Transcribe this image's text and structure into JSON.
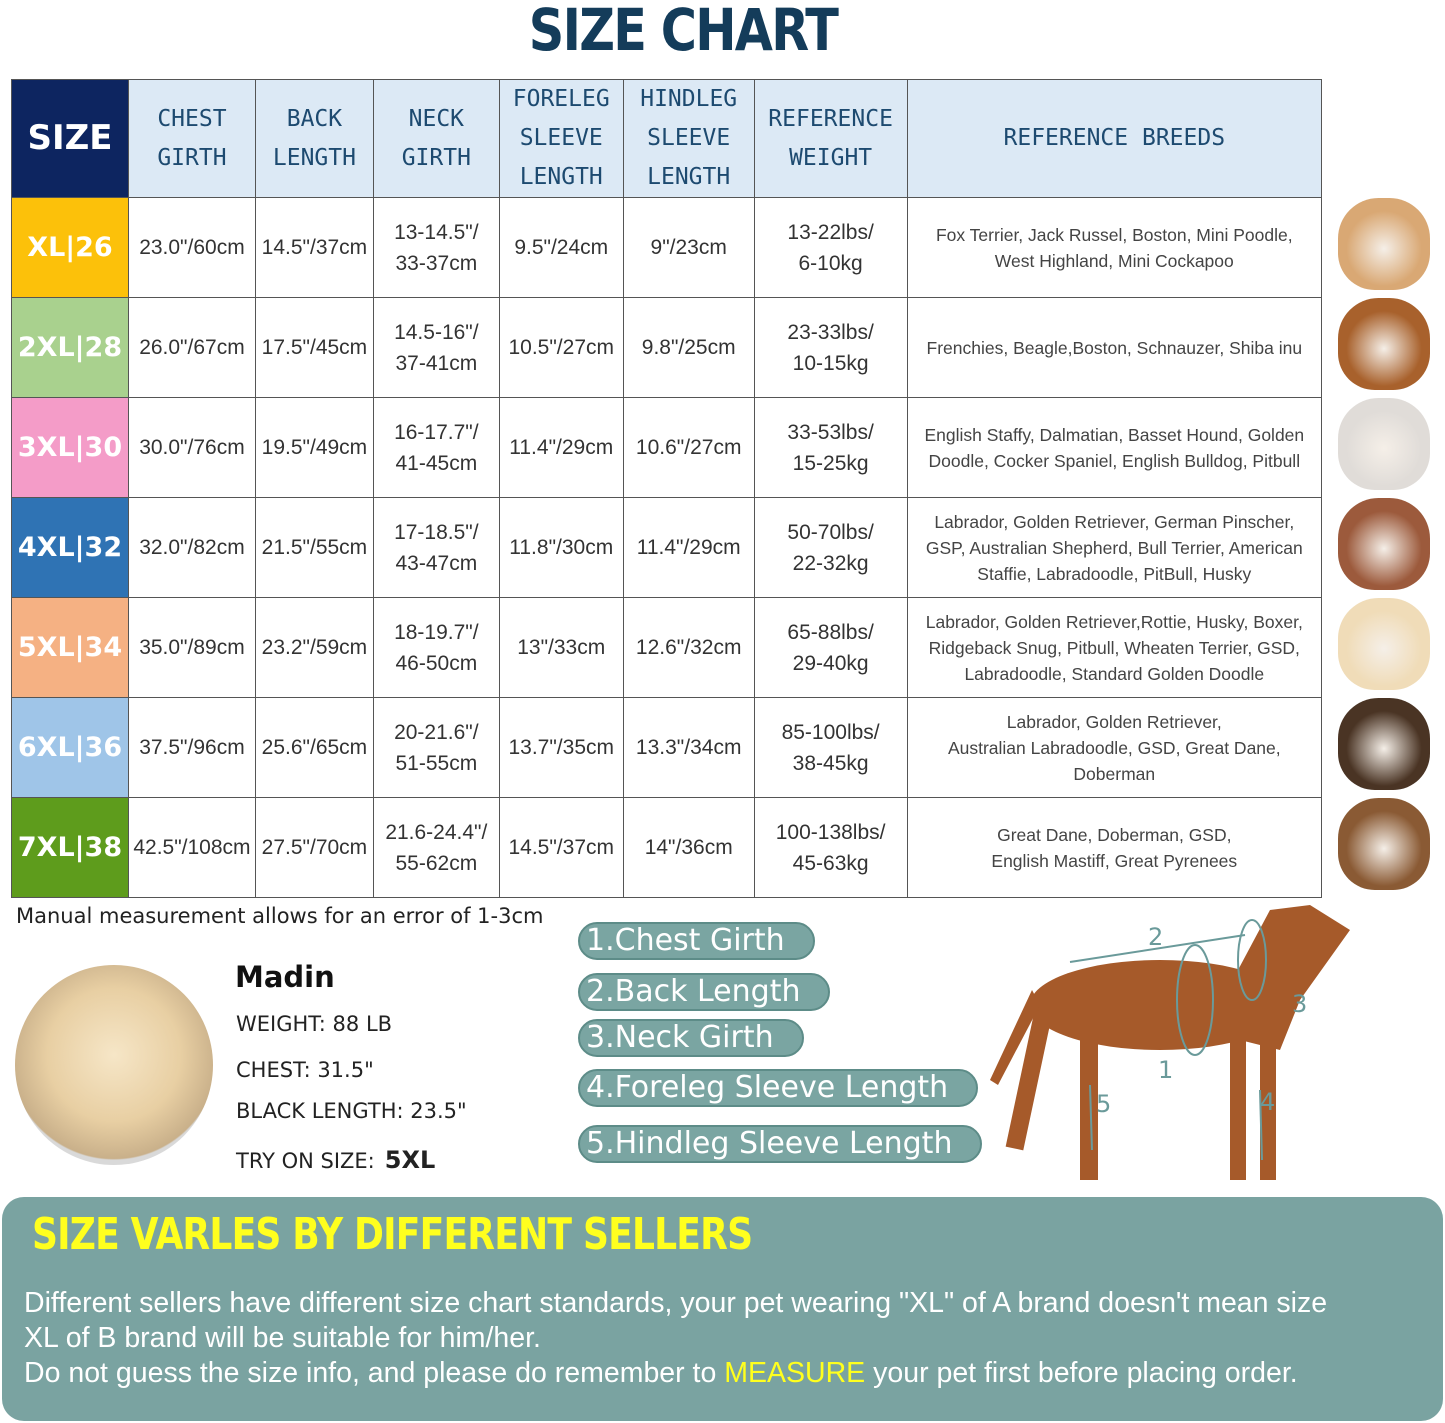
{
  "title": "SIZE CHART",
  "table": {
    "headers": [
      "SIZE",
      "CHEST\nGIRTH",
      "BACK\nLENGTH",
      "NECK\nGIRTH",
      "FORELEG\nSLEEVE\nLENGTH",
      "HINDLEG\nSLEEVE\nLENGTH",
      "REFERENCE\nWEIGHT",
      "REFERENCE  BREEDS"
    ],
    "rows": [
      {
        "size": "XL|26",
        "color": "#fcc10a",
        "chest": "23.0\"/60cm",
        "back": "14.5\"/37cm",
        "neck": "13-14.5\"/\n33-37cm",
        "foreleg": "9.5\"/24cm",
        "hindleg": "9\"/23cm",
        "weight": "13-22lbs/\n6-10kg",
        "breeds": "Fox Terrier, Jack Russel, Boston, Mini Poodle,\nWest Highland, Mini Cockapoo",
        "dog": "#d9a874"
      },
      {
        "size": "2XL|28",
        "color": "#a9d18e",
        "chest": "26.0\"/67cm",
        "back": "17.5\"/45cm",
        "neck": "14.5-16\"/\n37-41cm",
        "foreleg": "10.5\"/27cm",
        "hindleg": "9.8\"/25cm",
        "weight": "23-33lbs/\n10-15kg",
        "breeds": "Frenchies, Beagle,Boston, Schnauzer, Shiba inu",
        "dog": "#a8612c"
      },
      {
        "size": "3XL|30",
        "color": "#f49cc8",
        "chest": "30.0\"/76cm",
        "back": "19.5\"/49cm",
        "neck": "16-17.7\"/\n41-45cm",
        "foreleg": "11.4\"/29cm",
        "hindleg": "10.6\"/27cm",
        "weight": "33-53lbs/\n15-25kg",
        "breeds": "English Staffy, Dalmatian, Basset Hound, Golden\nDoodle, Cocker Spaniel, English Bulldog, Pitbull",
        "dog": "#e0dcd8"
      },
      {
        "size": "4XL|32",
        "color": "#2f73b4",
        "chest": "32.0\"/82cm",
        "back": "21.5\"/55cm",
        "neck": "17-18.5\"/\n43-47cm",
        "foreleg": "11.8\"/30cm",
        "hindleg": "11.4\"/29cm",
        "weight": "50-70lbs/\n22-32kg",
        "breeds": "Labrador, Golden Retriever, German Pinscher,\nGSP, Australian Shepherd, Bull Terrier, American\nStaffie, Labradoodle, PitBull, Husky",
        "dog": "#9c5a3c"
      },
      {
        "size": "5XL|34",
        "color": "#f5b183",
        "chest": "35.0\"/89cm",
        "back": "23.2\"/59cm",
        "neck": "18-19.7\"/\n46-50cm",
        "foreleg": "13\"/33cm",
        "hindleg": "12.6\"/32cm",
        "weight": "65-88lbs/\n29-40kg",
        "breeds": "Labrador, Golden Retriever,Rottie, Husky, Boxer,\nRidgeback Snug, Pitbull, Wheaten Terrier, GSD,\nLabradoodle,  Standard Golden Doodle",
        "dog": "#f0dcb8"
      },
      {
        "size": "6XL|36",
        "color": "#9fc5e8",
        "chest": "37.5\"/96cm",
        "back": "25.6\"/65cm",
        "neck": "20-21.6\"/\n51-55cm",
        "foreleg": "13.7\"/35cm",
        "hindleg": "13.3\"/34cm",
        "weight": "85-100lbs/\n38-45kg",
        "breeds": "Labrador, Golden Retriever,\nAustralian Labradoodle, GSD, Great Dane,\nDoberman",
        "dog": "#4a3424"
      },
      {
        "size": "7XL|38",
        "color": "#5e9c1c",
        "chest": "42.5\"/108cm",
        "back": "27.5\"/70cm",
        "neck": "21.6-24.4\"/\n55-62cm",
        "foreleg": "14.5\"/37cm",
        "hindleg": "14\"/36cm",
        "weight": "100-138lbs/\n45-63kg",
        "breeds": "Great Dane, Doberman, GSD,\nEnglish Mastiff, Great Pyrenees",
        "dog": "#8a5a34"
      }
    ]
  },
  "note": "Manual measurement allows for an error of 1-3cm",
  "example": {
    "name": "Madin",
    "weight": "WEIGHT: 88 LB",
    "chest": "CHEST: 31.5\"",
    "back": "BLACK LENGTH: 23.5\"",
    "try_label": "TRY ON SIZE:",
    "try_value": "5XL"
  },
  "measurements": [
    "1.Chest Girth",
    "2.Back Length",
    "3.Neck Girth",
    "4.Foreleg Sleeve Length",
    "5.Hindleg Sleeve Length"
  ],
  "diagram_labels": [
    "1",
    "2",
    "3",
    "4",
    "5"
  ],
  "banner": {
    "title": "SIZE VARLES BY DIFFERENT SELLERS",
    "line1": "Different sellers have different size chart standards, your pet wearing \"XL\" of A brand doesn't mean size",
    "line2": " XL of B brand will be suitable for him/her.",
    "line3_pre": "Do not guess the size info, and please do remember to ",
    "line3_hl": "MEASURE",
    "line3_post": " your pet first before placing order."
  },
  "colors": {
    "title": "#143c5a",
    "header_bg": "#dce9f5",
    "size_header_bg": "#0d2560",
    "banner_bg": "#7aa3a1",
    "banner_highlight": "#ffff1e",
    "pill_bg": "#7aa5a2"
  }
}
